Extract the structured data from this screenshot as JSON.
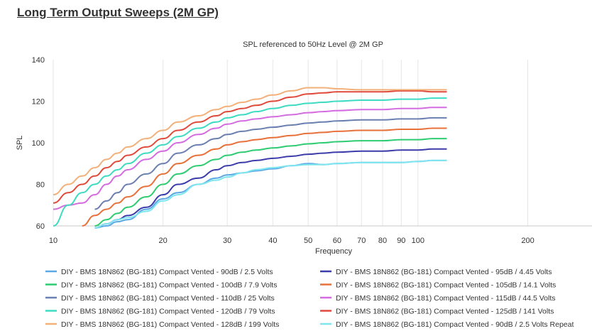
{
  "page": {
    "title": "Long Term Output Sweeps (2M GP)"
  },
  "chart_data": {
    "type": "line",
    "title": "SPL referenced to 50Hz Level @ 2M GP",
    "xlabel": "Frequency",
    "ylabel": "SPL",
    "xscale": "log",
    "xlim": [
      10,
      300
    ],
    "ylim": [
      60,
      140
    ],
    "xticks": [
      10,
      20,
      30,
      40,
      50,
      60,
      70,
      80,
      90,
      100,
      200
    ],
    "yticks": [
      60,
      80,
      100,
      120,
      140
    ],
    "grid": "vertical",
    "legend_position": "bottom",
    "x": [
      10,
      11,
      12,
      13,
      14,
      15,
      16,
      18,
      20,
      22,
      25,
      28,
      30,
      33,
      36,
      40,
      45,
      50,
      55,
      60,
      70,
      80,
      90,
      100,
      110,
      120
    ],
    "series": [
      {
        "name": "DIY - BMS 18N862 (BG-181) Compact Vented - 90dB / 2.5 Volts",
        "color": "#5aa9e6",
        "values": [
          null,
          null,
          null,
          59,
          60,
          62,
          63,
          68,
          73,
          76,
          80,
          83,
          84.5,
          85.5,
          86.5,
          87.5,
          89,
          90,
          89.5,
          90,
          90.5,
          90.5,
          90.5,
          91,
          91.5,
          91.5
        ]
      },
      {
        "name": "DIY - BMS 18N862 (BG-181) Compact Vented - 95dB / 4.45 Volts",
        "color": "#3c3caa",
        "values": [
          null,
          null,
          null,
          59,
          61,
          63,
          65,
          69,
          75,
          80,
          83,
          87,
          89,
          90.5,
          91.5,
          92.5,
          93.5,
          94.5,
          95,
          95.5,
          96,
          96,
          96.5,
          96.5,
          97,
          97
        ]
      },
      {
        "name": "DIY - BMS 18N862 (BG-181) Compact Vented - 100dB / 7.9 Volts",
        "color": "#2ecc71",
        "values": [
          null,
          null,
          null,
          60,
          63,
          66,
          69,
          74,
          80,
          85,
          89,
          92,
          94,
          95.5,
          96.5,
          97.5,
          98.5,
          99.5,
          100,
          100.5,
          101,
          101,
          101.5,
          101.5,
          102,
          102
        ]
      },
      {
        "name": "DIY - BMS 18N862 (BG-181) Compact Vented - 105dB / 14.1 Volts",
        "color": "#e8703a",
        "values": [
          null,
          null,
          60,
          65,
          68,
          71,
          74,
          79,
          85,
          90,
          94,
          97,
          99,
          100.5,
          101.5,
          102.5,
          103.5,
          104.5,
          105,
          105.5,
          106,
          106,
          106.5,
          106.5,
          107,
          107
        ]
      },
      {
        "name": "DIY - BMS 18N862 (BG-181) Compact Vented - 110dB / 25 Volts",
        "color": "#6b7fb0",
        "values": [
          null,
          null,
          null,
          68,
          72,
          76,
          80,
          85,
          90,
          95,
          99,
          102,
          104,
          105.5,
          106.5,
          107.5,
          108.5,
          109.5,
          110,
          110.5,
          111,
          111,
          111.5,
          111.5,
          112,
          112
        ]
      },
      {
        "name": "DIY - BMS 18N862 (BG-181) Compact Vented - 115dB / 44.5 Volts",
        "color": "#d46be0",
        "values": [
          68,
          70,
          71,
          75,
          80,
          84,
          87,
          92,
          96,
          100,
          104,
          107,
          109,
          110.5,
          111.5,
          112.5,
          113.5,
          114.5,
          115,
          115.5,
          116,
          116,
          116.5,
          116.5,
          117,
          117
        ]
      },
      {
        "name": "DIY - BMS 18N862 (BG-181) Compact Vented - 120dB / 79 Volts",
        "color": "#3ddbc2",
        "values": [
          60,
          70,
          76,
          80,
          84,
          87,
          90,
          95,
          99,
          103,
          107,
          110,
          112,
          113.5,
          115,
          116.5,
          118,
          119,
          119.5,
          120,
          120.5,
          120.5,
          121,
          121,
          121.5,
          121.5
        ]
      },
      {
        "name": "DIY - BMS 18N862 (BG-181) Compact Vented - 125dB / 141 Volts",
        "color": "#e04a3a",
        "values": [
          71,
          76,
          80,
          84,
          88,
          91,
          94,
          98,
          102,
          106,
          110,
          113,
          115,
          116.5,
          118,
          120,
          122,
          123.5,
          124,
          124.5,
          124.5,
          124.5,
          125,
          125,
          124.5,
          124.5
        ]
      },
      {
        "name": "DIY - BMS 18N862 (BG-181) Compact Vented - 128dB / 199 Volts",
        "color": "#f2b07a",
        "values": [
          75,
          80,
          84,
          88,
          92,
          95,
          98,
          102,
          106,
          110,
          113,
          116,
          117.5,
          119.5,
          121,
          123,
          125,
          126.5,
          126.5,
          126,
          125.5,
          125.5,
          125.5,
          125.5,
          125.5,
          125.5
        ]
      },
      {
        "name": "DIY - BMS 18N862 (BG-181) Compact Vented - 90dB / 2.5 Volts Repeat",
        "color": "#7fe6ef",
        "values": [
          null,
          null,
          null,
          59,
          61,
          63,
          64,
          67,
          72,
          75,
          80,
          82,
          83.5,
          85.5,
          87,
          88,
          89,
          89.5,
          89.5,
          90,
          90.5,
          90.5,
          90.5,
          91,
          91.5,
          91.5
        ]
      }
    ]
  }
}
